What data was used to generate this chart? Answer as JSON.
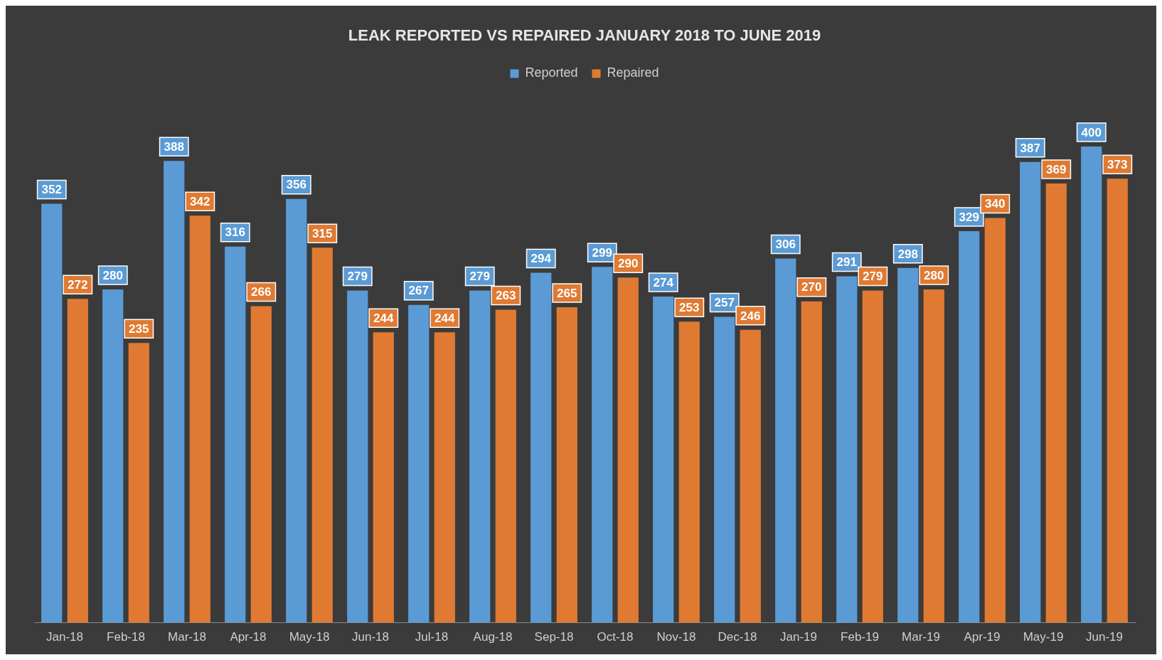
{
  "chart_data": {
    "type": "bar",
    "title": "LEAK REPORTED VS REPAIRED JANUARY 2018 TO JUNE 2019",
    "categories": [
      "Jan-18",
      "Feb-18",
      "Mar-18",
      "Apr-18",
      "May-18",
      "Jun-18",
      "Jul-18",
      "Aug-18",
      "Sep-18",
      "Oct-18",
      "Nov-18",
      "Dec-18",
      "Jan-19",
      "Feb-19",
      "Mar-19",
      "Apr-19",
      "May-19",
      "Jun-19"
    ],
    "series": [
      {
        "name": "Reported",
        "color": "#5b9bd5",
        "values": [
          352,
          280,
          388,
          316,
          356,
          279,
          267,
          279,
          294,
          299,
          274,
          257,
          306,
          291,
          298,
          329,
          387,
          400
        ]
      },
      {
        "name": "Repaired",
        "color": "#e07a32",
        "values": [
          272,
          235,
          342,
          266,
          315,
          244,
          244,
          263,
          265,
          290,
          253,
          246,
          270,
          279,
          280,
          340,
          369,
          373
        ]
      }
    ],
    "legend": "top",
    "data_labels": true
  }
}
